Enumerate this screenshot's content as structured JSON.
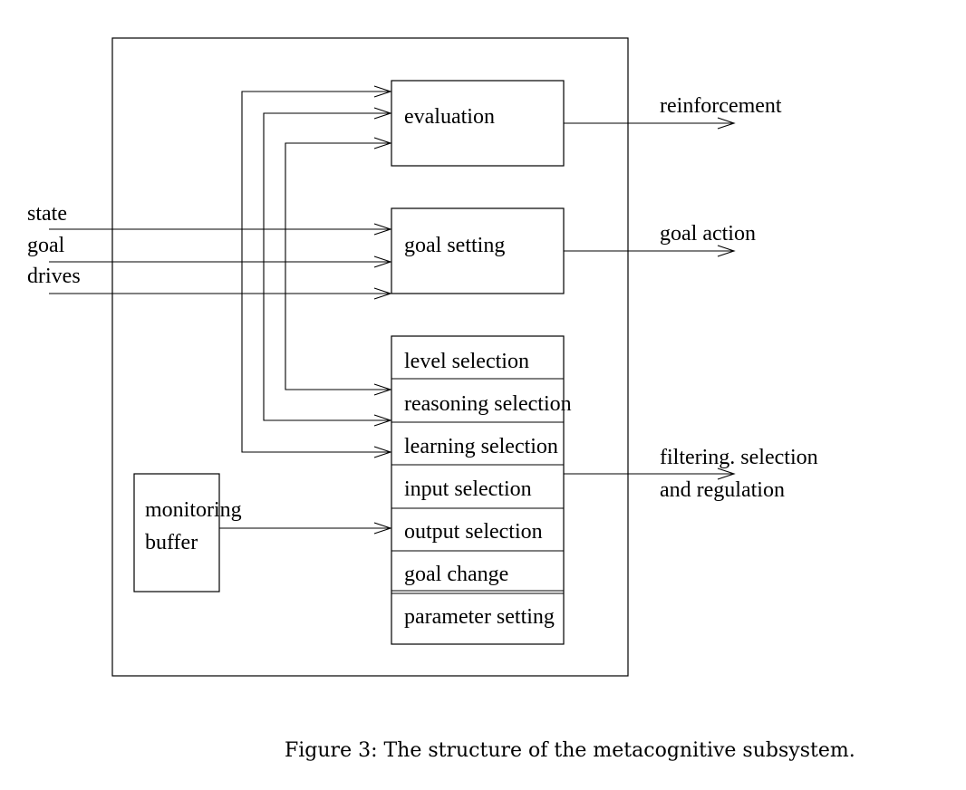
{
  "diagram": {
    "evaluation": "evaluation",
    "goal_setting": "goal setting",
    "monitoring_line1": "monitoring",
    "monitoring_line2": "buffer",
    "inputs": [
      "state",
      "goal",
      "drives"
    ],
    "selection_stack": [
      "level selection",
      "reasoning selection",
      "learning selection",
      "input selection",
      "output selection",
      "goal change",
      "parameter setting"
    ],
    "outputs": {
      "reinforcement": "reinforcement",
      "goal_action": "goal action",
      "filtering_line1": "filtering. selection",
      "filtering_line2": "and regulation"
    }
  },
  "caption": "Figure 3: The structure of the metacognitive subsystem."
}
